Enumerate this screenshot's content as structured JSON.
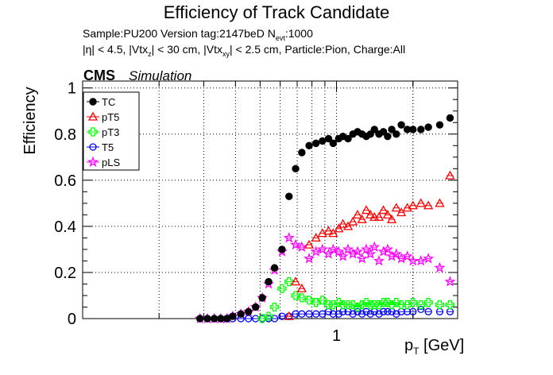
{
  "figure": {
    "title": "Efficiency of Track Candidate",
    "subtitle_1": "Sample:PU200   Version tag:2147beD  N_evt:1000",
    "subtitle_2": "|η| < 4.5, |Vtx_z| < 30 cm, |Vtx_xy| < 2.5 cm, Particle:Pion, Charge:All",
    "experiment": "CMS",
    "experiment_tag": "Simulation"
  },
  "chart_data": {
    "type": "scatter",
    "title": "Efficiency of Track Candidate",
    "xlabel": "p_T [GeV]",
    "ylabel": "Efficiency",
    "xscale": "log",
    "xlim": [
      0.1,
      3
    ],
    "ylim": [
      0,
      1.03
    ],
    "x_ticks": [
      1
    ],
    "x_tick_labels": [
      "1"
    ],
    "y_ticks": [
      0,
      0.2,
      0.4,
      0.6,
      0.8,
      1
    ],
    "y_tick_labels": [
      "0",
      "0.2",
      "0.4",
      "0.6",
      "0.8",
      "1"
    ],
    "grid": true,
    "legend_position": "top-left",
    "series": [
      {
        "name": "TC",
        "color": "#000000",
        "marker": "filled-circle",
        "x": [
          0.29,
          0.31,
          0.33,
          0.35,
          0.37,
          0.39,
          0.42,
          0.45,
          0.48,
          0.51,
          0.54,
          0.57,
          0.61,
          0.65,
          0.69,
          0.73,
          0.78,
          0.83,
          0.88,
          0.93,
          0.97,
          1.02,
          1.06,
          1.11,
          1.16,
          1.21,
          1.26,
          1.31,
          1.36,
          1.41,
          1.47,
          1.53,
          1.59,
          1.65,
          1.72,
          1.8,
          1.9,
          2.0,
          2.15,
          2.3,
          2.55,
          2.8
        ],
        "y": [
          0.0,
          0.0,
          0.0,
          0.0,
          0.0,
          0.01,
          0.02,
          0.03,
          0.05,
          0.09,
          0.16,
          0.22,
          0.3,
          0.53,
          0.65,
          0.72,
          0.75,
          0.76,
          0.77,
          0.78,
          0.76,
          0.78,
          0.79,
          0.78,
          0.8,
          0.81,
          0.8,
          0.79,
          0.8,
          0.82,
          0.8,
          0.81,
          0.79,
          0.82,
          0.8,
          0.84,
          0.82,
          0.82,
          0.82,
          0.83,
          0.84,
          0.87
        ]
      },
      {
        "name": "pT5",
        "color": "#ff0000",
        "marker": "open-triangle",
        "x": [
          0.65,
          0.69,
          0.73,
          0.78,
          0.83,
          0.88,
          0.93,
          0.97,
          1.02,
          1.06,
          1.11,
          1.16,
          1.21,
          1.26,
          1.31,
          1.36,
          1.41,
          1.47,
          1.53,
          1.59,
          1.65,
          1.72,
          1.8,
          1.9,
          2.0,
          2.15,
          2.3,
          2.55,
          2.8
        ],
        "y": [
          0.01,
          0.16,
          0.13,
          0.32,
          0.35,
          0.37,
          0.38,
          0.37,
          0.39,
          0.41,
          0.4,
          0.42,
          0.45,
          0.43,
          0.47,
          0.45,
          0.44,
          0.44,
          0.47,
          0.45,
          0.43,
          0.48,
          0.46,
          0.48,
          0.49,
          0.5,
          0.49,
          0.5,
          0.62
        ]
      },
      {
        "name": "pT3",
        "color": "#00ff00",
        "marker": "open-cross",
        "x": [
          0.51,
          0.54,
          0.57,
          0.61,
          0.65,
          0.69,
          0.73,
          0.78,
          0.83,
          0.88,
          0.93,
          0.97,
          1.02,
          1.06,
          1.11,
          1.16,
          1.21,
          1.26,
          1.31,
          1.36,
          1.41,
          1.47,
          1.53,
          1.59,
          1.65,
          1.72,
          1.8,
          1.9,
          2.0,
          2.15,
          2.3,
          2.55,
          2.8
        ],
        "y": [
          0.0,
          0.01,
          0.05,
          0.13,
          0.16,
          0.1,
          0.09,
          0.08,
          0.07,
          0.08,
          0.06,
          0.06,
          0.07,
          0.06,
          0.06,
          0.06,
          0.05,
          0.06,
          0.07,
          0.06,
          0.06,
          0.06,
          0.07,
          0.07,
          0.06,
          0.07,
          0.06,
          0.06,
          0.07,
          0.06,
          0.07,
          0.06,
          0.06
        ]
      },
      {
        "name": "T5",
        "color": "#0000ff",
        "marker": "open-circle",
        "x": [
          0.29,
          0.31,
          0.33,
          0.35,
          0.37,
          0.39,
          0.42,
          0.45,
          0.48,
          0.51,
          0.54,
          0.57,
          0.61,
          0.65,
          0.69,
          0.73,
          0.78,
          0.83,
          0.88,
          0.93,
          0.97,
          1.02,
          1.06,
          1.11,
          1.16,
          1.21,
          1.26,
          1.31,
          1.36,
          1.41,
          1.47,
          1.53,
          1.59,
          1.65,
          1.72,
          1.8,
          1.9,
          2.0,
          2.15,
          2.3,
          2.55,
          2.8
        ],
        "y": [
          0.0,
          0.0,
          0.0,
          0.0,
          0.0,
          0.0,
          0.0,
          0.0,
          0.0,
          0.0,
          0.0,
          0.0,
          0.01,
          0.01,
          0.02,
          0.02,
          0.02,
          0.02,
          0.02,
          0.03,
          0.02,
          0.02,
          0.03,
          0.03,
          0.02,
          0.03,
          0.02,
          0.03,
          0.02,
          0.03,
          0.02,
          0.03,
          0.03,
          0.03,
          0.02,
          0.03,
          0.03,
          0.03,
          0.04,
          0.03,
          0.03,
          0.03
        ]
      },
      {
        "name": "pLS",
        "color": "#ff00ff",
        "marker": "open-star",
        "x": [
          0.29,
          0.31,
          0.33,
          0.35,
          0.37,
          0.39,
          0.42,
          0.45,
          0.48,
          0.51,
          0.54,
          0.57,
          0.61,
          0.65,
          0.69,
          0.73,
          0.78,
          0.83,
          0.88,
          0.93,
          0.97,
          1.02,
          1.06,
          1.11,
          1.16,
          1.21,
          1.26,
          1.31,
          1.36,
          1.41,
          1.47,
          1.53,
          1.59,
          1.65,
          1.72,
          1.8,
          1.9,
          2.0,
          2.15,
          2.3,
          2.55,
          2.8
        ],
        "y": [
          0.0,
          0.0,
          0.0,
          0.0,
          0.0,
          0.01,
          0.02,
          0.03,
          0.05,
          0.09,
          0.15,
          0.21,
          0.29,
          0.35,
          0.32,
          0.31,
          0.26,
          0.29,
          0.3,
          0.28,
          0.3,
          0.29,
          0.27,
          0.3,
          0.28,
          0.29,
          0.26,
          0.3,
          0.28,
          0.31,
          0.25,
          0.29,
          0.3,
          0.27,
          0.28,
          0.26,
          0.27,
          0.25,
          0.25,
          0.26,
          0.22,
          0.16
        ]
      }
    ]
  }
}
